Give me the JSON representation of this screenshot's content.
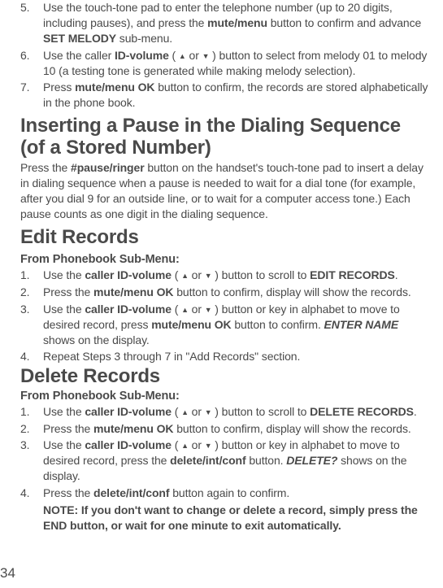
{
  "steps_top": [
    {
      "n": "5.",
      "parts": [
        {
          "t": "Use the touch-tone pad to enter the telephone number (up to 20 digits, including pauses), and press the "
        },
        {
          "t": "mute/menu",
          "b": true
        },
        {
          "t": " button to confirm and advance "
        },
        {
          "t": "SET MELODY",
          "b": true
        },
        {
          "t": " sub-menu."
        }
      ]
    },
    {
      "n": "6.",
      "parts": [
        {
          "t": "Use the caller "
        },
        {
          "t": "ID-volume",
          "b": true
        },
        {
          "t": " ( "
        },
        {
          "tri": "up"
        },
        {
          "t": "  or  "
        },
        {
          "tri": "down"
        },
        {
          "t": " ) button to select from melody 01 to melody 10 (a testing tone is generated while making melody selection)."
        }
      ]
    },
    {
      "n": "7.",
      "parts": [
        {
          "t": "Press "
        },
        {
          "t": "mute/menu OK",
          "b": true
        },
        {
          "t": " button to confirm, the records are stored alphabetically in the phone book."
        }
      ]
    }
  ],
  "h_insert": "Inserting a Pause in the Dialing Sequence (of a Stored Number)",
  "p_insert": [
    {
      "t": "Press the "
    },
    {
      "t": "#pause/ringer",
      "b": true
    },
    {
      "t": " button on the handset's touch-tone pad to insert a delay in dialing sequence when a pause is needed to wait for a dial tone (for example, after you dial 9 for an outside line, or to wait for a computer access tone.) Each pause counts as one digit in the dialing sequence."
    }
  ],
  "h_edit": "Edit Records",
  "sub_phonebook": "From Phonebook Sub-Menu:",
  "steps_edit": [
    {
      "n": "1.",
      "parts": [
        {
          "t": "Use the "
        },
        {
          "t": "caller ID-volume",
          "b": true
        },
        {
          "t": " ( "
        },
        {
          "tri": "up"
        },
        {
          "t": "  or  "
        },
        {
          "tri": "down"
        },
        {
          "t": " ) button to scroll to "
        },
        {
          "t": "EDIT RECORDS",
          "b": true
        },
        {
          "t": "."
        }
      ]
    },
    {
      "n": "2.",
      "parts": [
        {
          "t": "Press the "
        },
        {
          "t": "mute/menu OK",
          "b": true
        },
        {
          "t": " button to confirm, display will show the records."
        }
      ]
    },
    {
      "n": "3.",
      "parts": [
        {
          "t": "Use the "
        },
        {
          "t": "caller ID-volume",
          "b": true
        },
        {
          "t": " ( "
        },
        {
          "tri": "up"
        },
        {
          "t": "  or  "
        },
        {
          "tri": "down"
        },
        {
          "t": " ) button or key in alphabet to move to desired record, press "
        },
        {
          "t": "mute/menu OK",
          "b": true
        },
        {
          "t": " button to confirm.  "
        },
        {
          "t": "ENTER NAME",
          "bi": true
        },
        {
          "t": " shows on the display."
        }
      ]
    },
    {
      "n": "4.",
      "parts": [
        {
          "t": "Repeat Steps 3 through 7 in \"Add Records\" section."
        }
      ]
    }
  ],
  "h_delete": "Delete Records",
  "steps_delete": [
    {
      "n": "1.",
      "parts": [
        {
          "t": "Use the "
        },
        {
          "t": "caller ID-volume",
          "b": true
        },
        {
          "t": " ( "
        },
        {
          "tri": "up"
        },
        {
          "t": "  or  "
        },
        {
          "tri": "down"
        },
        {
          "t": " ) button to scroll to "
        },
        {
          "t": "DELETE RECORDS",
          "b": true
        },
        {
          "t": "."
        }
      ]
    },
    {
      "n": "2.",
      "parts": [
        {
          "t": "Press the "
        },
        {
          "t": "mute/menu OK",
          "b": true
        },
        {
          "t": " button to confirm, display will show the records."
        }
      ]
    },
    {
      "n": "3.",
      "parts": [
        {
          "t": "Use the "
        },
        {
          "t": "caller ID-volume",
          "b": true
        },
        {
          "t": " ( "
        },
        {
          "tri": "up"
        },
        {
          "t": "  or  "
        },
        {
          "tri": "down"
        },
        {
          "t": " ) button or key in alphabet to move to desired record, press the "
        },
        {
          "t": "delete/int/conf",
          "b": true
        },
        {
          "t": " button. "
        },
        {
          "t": "DELETE?",
          "bi": true
        },
        {
          "t": " shows on the display."
        }
      ]
    },
    {
      "n": "4.",
      "parts": [
        {
          "t": "Press the "
        },
        {
          "t": "delete/int/conf",
          "b": true
        },
        {
          "t": " button again to confirm."
        }
      ]
    }
  ],
  "note": "NOTE: If you don't want to change or delete a record, simply press the END button, or wait for one minute to exit automatically.",
  "page_number": "34"
}
